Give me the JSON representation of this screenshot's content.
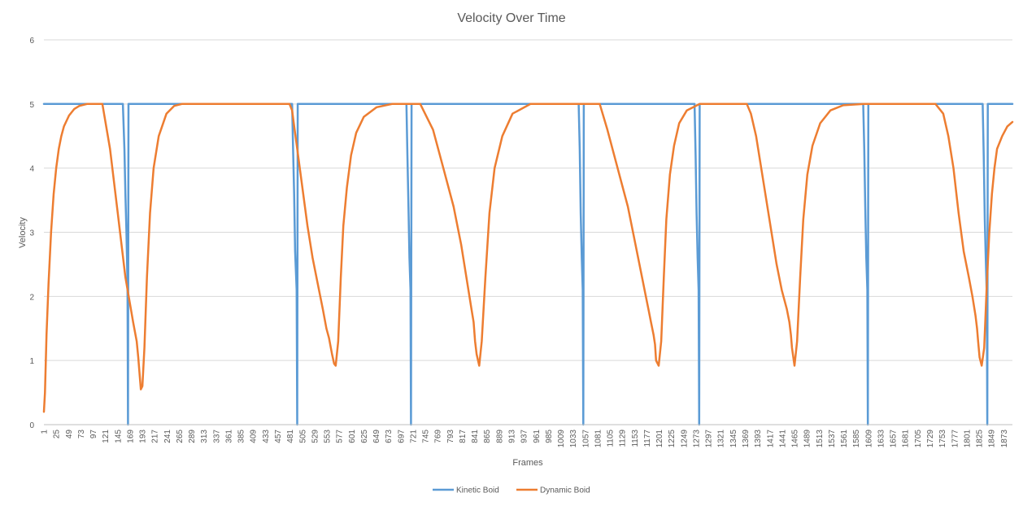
{
  "chart_data": {
    "type": "line",
    "title": "Velocity Over Time",
    "xlabel": "Frames",
    "ylabel": "Velocity",
    "ylim": [
      0,
      6
    ],
    "yticks": [
      0,
      1,
      2,
      3,
      4,
      5,
      6
    ],
    "xlim": [
      1,
      1890
    ],
    "xtick_start": 1,
    "xtick_step": 24,
    "grid": "horizontal",
    "legend_position": "bottom",
    "series": [
      {
        "name": "Kinetic Boid",
        "color": "#5b9bd5",
        "x": [
          1,
          155,
          158,
          160,
          162,
          164,
          165,
          166,
          485,
          487,
          489,
          491,
          494,
          495,
          496,
          708,
          710,
          712,
          714,
          716,
          717,
          718,
          1044,
          1046,
          1048,
          1050,
          1052,
          1053,
          1054,
          1270,
          1272,
          1274,
          1276,
          1278,
          1279,
          1280,
          1599,
          1601,
          1603,
          1605,
          1607,
          1608,
          1609,
          1832,
          1834,
          1836,
          1838,
          1840,
          1841,
          1842,
          1890
        ],
        "y": [
          5,
          5,
          4.3,
          3.6,
          3.0,
          2.2,
          0,
          5,
          5,
          4.3,
          3.6,
          2.7,
          2.1,
          0,
          5,
          5,
          4.2,
          3.4,
          2.6,
          2.1,
          0,
          5,
          5,
          4.3,
          3.3,
          2.6,
          2.1,
          0,
          5,
          5,
          4.2,
          3.3,
          2.6,
          2.1,
          0,
          5,
          5,
          4.3,
          3.4,
          2.6,
          2.1,
          0,
          5,
          5,
          4.2,
          3.2,
          2.6,
          2.0,
          0,
          5,
          5
        ]
      },
      {
        "name": "Dynamic Boid",
        "color": "#ed7d31",
        "x": [
          1,
          3,
          6,
          10,
          15,
          20,
          25,
          30,
          35,
          40,
          50,
          60,
          70,
          85,
          100,
          115,
          130,
          145,
          160,
          175,
          182,
          185,
          188,
          190,
          193,
          197,
          202,
          208,
          215,
          225,
          240,
          255,
          270,
          300,
          330,
          368,
          380,
          430,
          470,
          480,
          485,
          490,
          495,
          505,
          515,
          525,
          535,
          545,
          552,
          557,
          563,
          567,
          570,
          575,
          580,
          585,
          592,
          600,
          610,
          625,
          650,
          680,
          700,
          720,
          735,
          760,
          780,
          800,
          815,
          825,
          835,
          839,
          842,
          845,
          850,
          855,
          862,
          870,
          880,
          895,
          915,
          950,
          1000,
          1050,
          1070,
          1085,
          1100,
          1120,
          1140,
          1155,
          1165,
          1175,
          1180,
          1185,
          1190,
          1193,
          1195,
          1200,
          1205,
          1210,
          1215,
          1222,
          1230,
          1240,
          1255,
          1280,
          1300,
          1360,
          1372,
          1380,
          1390,
          1400,
          1410,
          1420,
          1430,
          1440,
          1450,
          1455,
          1458,
          1460,
          1465,
          1470,
          1476,
          1482,
          1490,
          1500,
          1515,
          1535,
          1560,
          1600,
          1650,
          1700,
          1740,
          1755,
          1765,
          1775,
          1785,
          1795,
          1805,
          1812,
          1818,
          1821,
          1823,
          1826,
          1830,
          1835,
          1840,
          1845,
          1850,
          1855,
          1860,
          1870,
          1880,
          1890
        ],
        "y": [
          0.2,
          0.5,
          1.4,
          2.2,
          3.0,
          3.6,
          4.0,
          4.3,
          4.5,
          4.65,
          4.82,
          4.92,
          4.97,
          5.0,
          5.0,
          5.0,
          4.3,
          3.3,
          2.3,
          1.6,
          1.3,
          1.05,
          0.75,
          0.55,
          0.6,
          1.2,
          2.3,
          3.3,
          4.0,
          4.5,
          4.85,
          4.97,
          5.0,
          5.0,
          5.0,
          5.0,
          5.0,
          5.0,
          5.0,
          5.0,
          4.9,
          4.6,
          4.3,
          3.7,
          3.1,
          2.6,
          2.2,
          1.8,
          1.5,
          1.35,
          1.1,
          0.95,
          0.92,
          1.3,
          2.3,
          3.1,
          3.7,
          4.2,
          4.55,
          4.8,
          4.95,
          5.0,
          5.0,
          5.0,
          5.0,
          4.6,
          4.0,
          3.4,
          2.8,
          2.3,
          1.8,
          1.6,
          1.3,
          1.1,
          0.92,
          1.3,
          2.3,
          3.3,
          4.0,
          4.5,
          4.85,
          5.0,
          5.0,
          5.0,
          5.0,
          5.0,
          4.6,
          4.0,
          3.4,
          2.8,
          2.4,
          2.0,
          1.8,
          1.6,
          1.4,
          1.25,
          1.0,
          0.92,
          1.3,
          2.3,
          3.2,
          3.9,
          4.35,
          4.7,
          4.9,
          5.0,
          5.0,
          5.0,
          5.0,
          4.85,
          4.5,
          4.0,
          3.5,
          3.0,
          2.5,
          2.1,
          1.8,
          1.6,
          1.4,
          1.2,
          0.92,
          1.3,
          2.3,
          3.2,
          3.9,
          4.35,
          4.7,
          4.9,
          4.98,
          5.0,
          5.0,
          5.0,
          5.0,
          4.85,
          4.5,
          4.0,
          3.3,
          2.7,
          2.3,
          2.0,
          1.7,
          1.5,
          1.3,
          1.05,
          0.92,
          1.2,
          2.2,
          3.0,
          3.6,
          4.0,
          4.3,
          4.5,
          4.65,
          4.72
        ]
      }
    ]
  }
}
